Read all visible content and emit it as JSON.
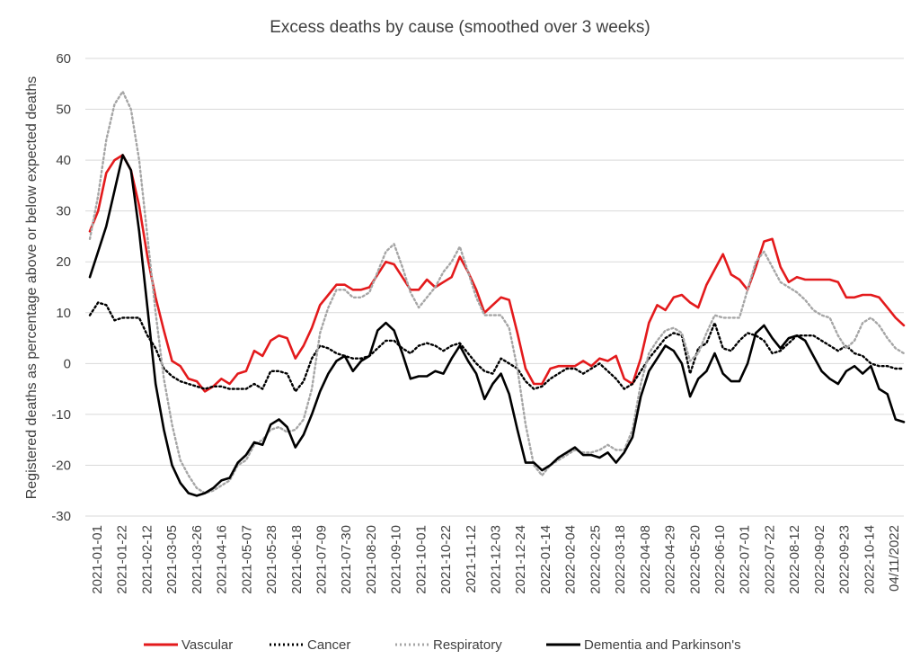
{
  "chart_data": {
    "type": "line",
    "title": "Excess deaths by cause (smoothed over 3 weeks)",
    "xlabel": "",
    "ylabel": "Registered deaths as percentage above or below expected deaths",
    "ylim": [
      -30,
      60
    ],
    "yticks": [
      -30,
      -20,
      -10,
      0,
      10,
      20,
      30,
      40,
      50,
      60
    ],
    "grid": "horizontal",
    "legend_position": "bottom",
    "xtick_labels": [
      "2021-01-01",
      "2021-01-22",
      "2021-02-12",
      "2021-03-05",
      "2021-03-26",
      "2021-04-16",
      "2021-05-07",
      "2021-05-28",
      "2021-06-18",
      "2021-07-09",
      "2021-07-30",
      "2021-08-20",
      "2021-09-10",
      "2021-10-01",
      "2021-10-22",
      "2021-11-12",
      "2021-12-03",
      "2021-12-24",
      "2022-01-14",
      "2022-02-04",
      "2022-02-25",
      "2022-03-18",
      "2022-04-08",
      "2022-04-29",
      "2022-05-20",
      "2022-06-10",
      "2022-07-01",
      "2022-07-22",
      "2022-08-12",
      "2022-09-02",
      "2022-09-23",
      "2022-10-14",
      "04/11/2022"
    ],
    "x": [
      "2021-01-01",
      "2021-01-08",
      "2021-01-15",
      "2021-01-22",
      "2021-01-29",
      "2021-02-05",
      "2021-02-12",
      "2021-02-19",
      "2021-02-26",
      "2021-03-05",
      "2021-03-12",
      "2021-03-19",
      "2021-03-26",
      "2021-04-02",
      "2021-04-09",
      "2021-04-16",
      "2021-04-23",
      "2021-04-30",
      "2021-05-07",
      "2021-05-14",
      "2021-05-21",
      "2021-05-28",
      "2021-06-04",
      "2021-06-11",
      "2021-06-18",
      "2021-06-25",
      "2021-07-02",
      "2021-07-09",
      "2021-07-16",
      "2021-07-23",
      "2021-07-30",
      "2021-08-06",
      "2021-08-13",
      "2021-08-20",
      "2021-08-27",
      "2021-09-03",
      "2021-09-10",
      "2021-09-17",
      "2021-09-24",
      "2021-10-01",
      "2021-10-08",
      "2021-10-15",
      "2021-10-22",
      "2021-10-29",
      "2021-11-05",
      "2021-11-12",
      "2021-11-19",
      "2021-11-26",
      "2021-12-03",
      "2021-12-10",
      "2021-12-17",
      "2021-12-24",
      "2021-12-31",
      "2022-01-07",
      "2022-01-14",
      "2022-01-21",
      "2022-01-28",
      "2022-02-04",
      "2022-02-11",
      "2022-02-18",
      "2022-02-25",
      "2022-03-04",
      "2022-03-11",
      "2022-03-18",
      "2022-03-25",
      "2022-04-01",
      "2022-04-08",
      "2022-04-15",
      "2022-04-22",
      "2022-04-29",
      "2022-05-06",
      "2022-05-13",
      "2022-05-20",
      "2022-05-27",
      "2022-06-03",
      "2022-06-10",
      "2022-06-17",
      "2022-06-24",
      "2022-07-01",
      "2022-07-08",
      "2022-07-15",
      "2022-07-22",
      "2022-07-29",
      "2022-08-05",
      "2022-08-12",
      "2022-08-19",
      "2022-08-26",
      "2022-09-02",
      "2022-09-09",
      "2022-09-16",
      "2022-09-23",
      "2022-09-30",
      "2022-10-07",
      "2022-10-14",
      "2022-10-21",
      "2022-10-28",
      "2022-11-04",
      "2022-11-11",
      "2022-11-18",
      "2022-11-25"
    ],
    "series": [
      {
        "name": "Vascular",
        "color": "#e31a1c",
        "dash": "solid",
        "values": [
          26,
          30,
          37.5,
          40,
          41,
          38,
          31,
          21,
          13,
          6.5,
          0.5,
          -0.5,
          -3,
          -3.5,
          -5.5,
          -4.5,
          -3,
          -4,
          -2,
          -1.5,
          2.5,
          1.5,
          4.5,
          5.5,
          5,
          1,
          3.5,
          7,
          11.5,
          13.5,
          15.5,
          15.5,
          14.5,
          14.5,
          15,
          17.5,
          20,
          19.5,
          17,
          14.5,
          14.5,
          16.5,
          15,
          16,
          17,
          21,
          18,
          14.5,
          10,
          11.5,
          13,
          12.5,
          6,
          -1,
          -4,
          -4,
          -1,
          -0.5,
          -0.5,
          -0.5,
          0.5,
          -0.5,
          1,
          0.5,
          1.5,
          -3,
          -4,
          1,
          8,
          11.5,
          10.5,
          13,
          13.5,
          12,
          11,
          15.5,
          18.5,
          21.5,
          17.5,
          16.5,
          14.5,
          19,
          24,
          24.5,
          19,
          16,
          17,
          16.5,
          16.5,
          16.5,
          16.5,
          16,
          13,
          13,
          13.5,
          13.5,
          13,
          11,
          9,
          7.5
        ]
      },
      {
        "name": "Cancer",
        "color": "#000000",
        "dash": "dotted",
        "values": [
          9.5,
          12,
          11.5,
          8.5,
          9,
          9,
          9,
          5.5,
          3,
          -1,
          -2.5,
          -3.5,
          -4,
          -4.5,
          -5,
          -4.5,
          -4.5,
          -5,
          -5,
          -5,
          -4,
          -5,
          -1.5,
          -1.5,
          -2,
          -5.5,
          -3.5,
          1,
          3.5,
          3,
          2,
          1.5,
          1,
          1,
          1.5,
          3,
          4.5,
          4.5,
          3,
          2,
          3.5,
          4,
          3.5,
          2.5,
          3.5,
          4,
          2,
          0,
          -1.5,
          -2,
          1,
          0,
          -1,
          -3.5,
          -5,
          -4.5,
          -3,
          -2,
          -1,
          -1,
          -2,
          -1,
          0,
          -1.5,
          -3,
          -5,
          -4,
          -1.5,
          1,
          3,
          5,
          6,
          5.5,
          -2,
          3,
          4,
          8,
          3,
          2.5,
          4.5,
          6,
          5.5,
          4.5,
          2,
          2.5,
          4,
          5.5,
          5.5,
          5.5,
          4.5,
          3.5,
          2.5,
          3.5,
          2,
          1.5,
          0,
          -0.5,
          -0.5,
          -1,
          -1
        ]
      },
      {
        "name": "Respiratory",
        "color": "#a6a6a6",
        "dash": "dotted",
        "values": [
          24.5,
          33,
          44,
          51,
          53.5,
          50,
          40,
          25,
          10,
          -3,
          -12,
          -19,
          -22,
          -24.5,
          -25.5,
          -25,
          -24,
          -23,
          -20,
          -19,
          -16,
          -15,
          -13,
          -12.5,
          -13.5,
          -13,
          -11,
          -5,
          6,
          11,
          14.5,
          14.5,
          13,
          13,
          14,
          18,
          22,
          23.5,
          19,
          14,
          11,
          13,
          15,
          18,
          20,
          23,
          18,
          13,
          9.5,
          9.5,
          9.5,
          7,
          -1,
          -12,
          -20,
          -22,
          -20,
          -19,
          -18,
          -17,
          -17.5,
          -17.5,
          -17,
          -16,
          -17,
          -17,
          -13,
          -4,
          2,
          4.5,
          6.5,
          7,
          6,
          0.5,
          2,
          6,
          9.5,
          9,
          9,
          9,
          14.5,
          20,
          22,
          19,
          16,
          15,
          14,
          12.5,
          10.5,
          9.5,
          9,
          5.5,
          3,
          4.5,
          8,
          9,
          7.5,
          5,
          3,
          2
        ]
      },
      {
        "name": "Dementia and Parkinson's",
        "color": "#000000",
        "dash": "solid",
        "values": [
          17,
          22,
          27,
          34,
          41,
          38,
          26,
          11,
          -4,
          -13,
          -20,
          -23.5,
          -25.5,
          -26,
          -25.5,
          -24.5,
          -23,
          -22.5,
          -19.5,
          -18,
          -15.5,
          -16,
          -12,
          -11,
          -12.5,
          -16.5,
          -14,
          -10,
          -5.5,
          -2,
          0.5,
          1.5,
          -1.5,
          0.5,
          1.5,
          6.5,
          8,
          6.5,
          2,
          -3,
          -2.5,
          -2.5,
          -1.5,
          -2,
          1,
          3.5,
          0.5,
          -2,
          -7,
          -4,
          -2,
          -6,
          -13,
          -19.5,
          -19.5,
          -21,
          -20,
          -18.5,
          -17.5,
          -16.5,
          -18,
          -18,
          -18.5,
          -17.5,
          -19.5,
          -17.5,
          -14.5,
          -6.5,
          -1.5,
          1,
          3.5,
          2.5,
          0,
          -6.5,
          -3,
          -1.5,
          2,
          -2,
          -3.5,
          -3.5,
          0,
          6,
          7.5,
          5,
          3,
          5,
          5.5,
          4.5,
          1.5,
          -1.5,
          -3,
          -4,
          -1.5,
          -0.5,
          -2,
          -0.5,
          -5,
          -6,
          -11,
          -11.5
        ]
      }
    ]
  }
}
